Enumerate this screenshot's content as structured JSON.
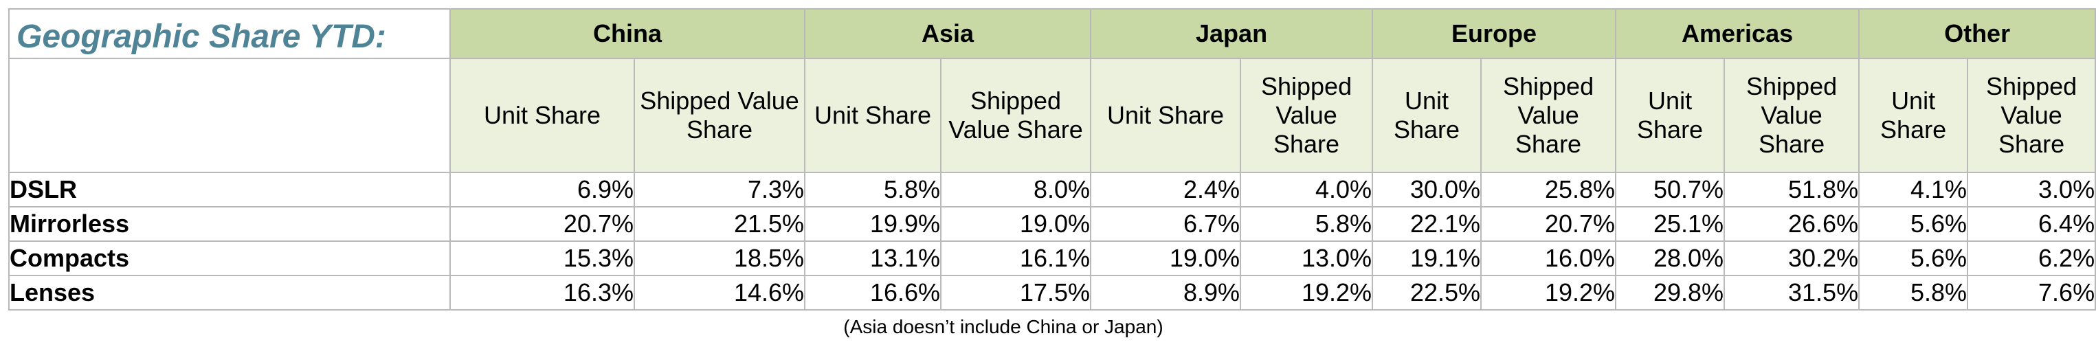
{
  "title": "Geographic Share YTD:",
  "footnote": "(Asia doesn’t include China or Japan)",
  "chart_data": {
    "type": "table",
    "title": "Geographic Share YTD:",
    "regions": [
      "China",
      "Asia",
      "Japan",
      "Europe",
      "Americas",
      "Other"
    ],
    "sub_columns": [
      [
        "Unit Share",
        "Shipped Value Share"
      ],
      [
        "Unit Share",
        "Shipped Value Share"
      ],
      [
        "Unit Share",
        "Shipped Value Share"
      ],
      [
        "Unit Share",
        "Shipped Value Share"
      ],
      [
        "Unit Share",
        "Shipped Value Share"
      ],
      [
        "Unit Share",
        "Shipped Value Share"
      ]
    ],
    "rows": [
      {
        "label": "DSLR",
        "values": [
          "6.9%",
          "7.3%",
          "5.8%",
          "8.0%",
          "2.4%",
          "4.0%",
          "30.0%",
          "25.8%",
          "50.7%",
          "51.8%",
          "4.1%",
          "3.0%"
        ]
      },
      {
        "label": "Mirrorless",
        "values": [
          "20.7%",
          "21.5%",
          "19.9%",
          "19.0%",
          "6.7%",
          "5.8%",
          "22.1%",
          "20.7%",
          "25.1%",
          "26.6%",
          "5.6%",
          "6.4%"
        ]
      },
      {
        "label": "Compacts",
        "values": [
          "15.3%",
          "18.5%",
          "13.1%",
          "16.1%",
          "19.0%",
          "13.0%",
          "19.1%",
          "16.0%",
          "28.0%",
          "30.2%",
          "5.6%",
          "6.2%"
        ]
      },
      {
        "label": "Lenses",
        "values": [
          "16.3%",
          "14.6%",
          "16.6%",
          "17.5%",
          "8.9%",
          "19.2%",
          "22.5%",
          "19.2%",
          "29.8%",
          "31.5%",
          "5.8%",
          "7.6%"
        ]
      }
    ]
  },
  "colors": {
    "title_text": "#4f8396",
    "region_header_bg": "#c9d9a6",
    "sub_header_bg": "#ebf1dc",
    "grid_lines": "#b9b9b9"
  }
}
